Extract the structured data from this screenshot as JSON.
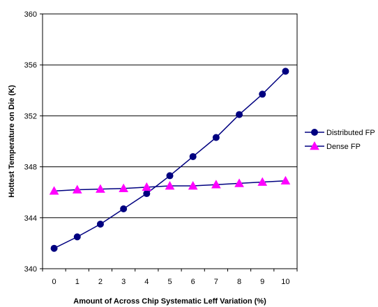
{
  "chart_data": {
    "type": "line",
    "title": "",
    "xlabel": "Amount of Across Chip Systematic Leff Variation (%)",
    "ylabel": "Hottest Temperature on Die (K)",
    "categories": [
      "0",
      "1",
      "2",
      "3",
      "4",
      "5",
      "6",
      "7",
      "8",
      "9",
      "10"
    ],
    "ylim": [
      340,
      360
    ],
    "yticks": [
      "340",
      "344",
      "348",
      "352",
      "356",
      "360"
    ],
    "grid": true,
    "legend_position": "right",
    "series": [
      {
        "name": "Distributed FP",
        "color": "#000080",
        "marker": "circle",
        "values": [
          341.6,
          342.5,
          343.5,
          344.7,
          345.9,
          347.3,
          348.8,
          350.3,
          352.1,
          353.7,
          355.5
        ]
      },
      {
        "name": "Dense FP",
        "color": "#ff00ff",
        "line_color": "#000080",
        "marker": "triangle",
        "values": [
          346.1,
          346.2,
          346.25,
          346.3,
          346.4,
          346.5,
          346.5,
          346.6,
          346.7,
          346.8,
          346.9
        ]
      }
    ]
  }
}
